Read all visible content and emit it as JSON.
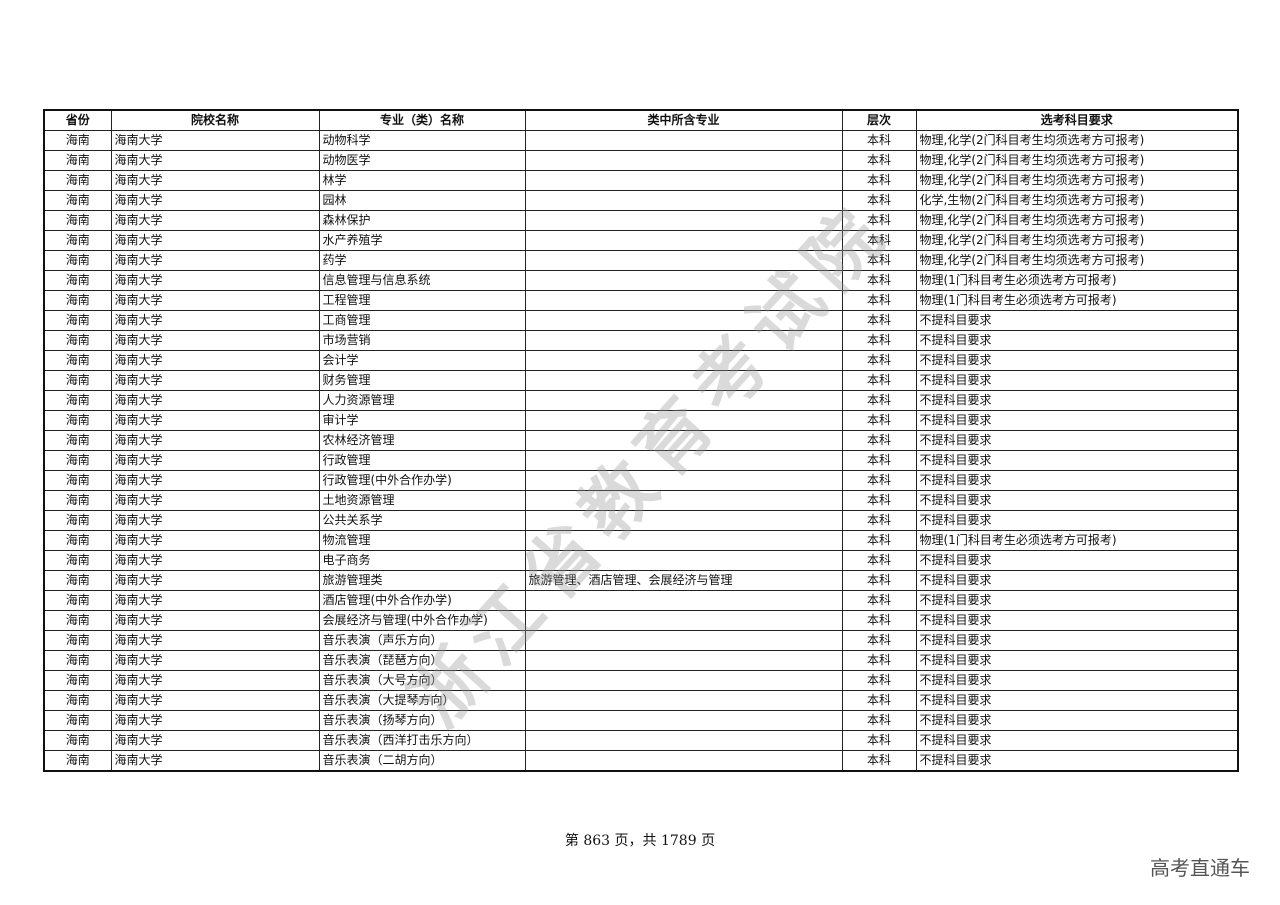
{
  "headers": [
    "省份",
    "院校名称",
    "专业（类）名称",
    "类中所含专业",
    "层次",
    "选考科目要求"
  ],
  "rows": [
    [
      "海南",
      "海南大学",
      "动物科学",
      "",
      "本科",
      "物理,化学(2门科目考生均须选考方可报考)"
    ],
    [
      "海南",
      "海南大学",
      "动物医学",
      "",
      "本科",
      "物理,化学(2门科目考生均须选考方可报考)"
    ],
    [
      "海南",
      "海南大学",
      "林学",
      "",
      "本科",
      "物理,化学(2门科目考生均须选考方可报考)"
    ],
    [
      "海南",
      "海南大学",
      "园林",
      "",
      "本科",
      "化学,生物(2门科目考生均须选考方可报考)"
    ],
    [
      "海南",
      "海南大学",
      "森林保护",
      "",
      "本科",
      "物理,化学(2门科目考生均须选考方可报考)"
    ],
    [
      "海南",
      "海南大学",
      "水产养殖学",
      "",
      "本科",
      "物理,化学(2门科目考生均须选考方可报考)"
    ],
    [
      "海南",
      "海南大学",
      "药学",
      "",
      "本科",
      "物理,化学(2门科目考生均须选考方可报考)"
    ],
    [
      "海南",
      "海南大学",
      "信息管理与信息系统",
      "",
      "本科",
      "物理(1门科目考生必须选考方可报考)"
    ],
    [
      "海南",
      "海南大学",
      "工程管理",
      "",
      "本科",
      "物理(1门科目考生必须选考方可报考)"
    ],
    [
      "海南",
      "海南大学",
      "工商管理",
      "",
      "本科",
      "不提科目要求"
    ],
    [
      "海南",
      "海南大学",
      "市场营销",
      "",
      "本科",
      "不提科目要求"
    ],
    [
      "海南",
      "海南大学",
      "会计学",
      "",
      "本科",
      "不提科目要求"
    ],
    [
      "海南",
      "海南大学",
      "财务管理",
      "",
      "本科",
      "不提科目要求"
    ],
    [
      "海南",
      "海南大学",
      "人力资源管理",
      "",
      "本科",
      "不提科目要求"
    ],
    [
      "海南",
      "海南大学",
      "审计学",
      "",
      "本科",
      "不提科目要求"
    ],
    [
      "海南",
      "海南大学",
      "农林经济管理",
      "",
      "本科",
      "不提科目要求"
    ],
    [
      "海南",
      "海南大学",
      "行政管理",
      "",
      "本科",
      "不提科目要求"
    ],
    [
      "海南",
      "海南大学",
      "行政管理(中外合作办学)",
      "",
      "本科",
      "不提科目要求"
    ],
    [
      "海南",
      "海南大学",
      "土地资源管理",
      "",
      "本科",
      "不提科目要求"
    ],
    [
      "海南",
      "海南大学",
      "公共关系学",
      "",
      "本科",
      "不提科目要求"
    ],
    [
      "海南",
      "海南大学",
      "物流管理",
      "",
      "本科",
      "物理(1门科目考生必须选考方可报考)"
    ],
    [
      "海南",
      "海南大学",
      "电子商务",
      "",
      "本科",
      "不提科目要求"
    ],
    [
      "海南",
      "海南大学",
      "旅游管理类",
      "旅游管理、酒店管理、会展经济与管理",
      "本科",
      "不提科目要求"
    ],
    [
      "海南",
      "海南大学",
      "酒店管理(中外合作办学)",
      "",
      "本科",
      "不提科目要求"
    ],
    [
      "海南",
      "海南大学",
      "会展经济与管理(中外合作办学)",
      "",
      "本科",
      "不提科目要求"
    ],
    [
      "海南",
      "海南大学",
      "音乐表演（声乐方向）",
      "",
      "本科",
      "不提科目要求"
    ],
    [
      "海南",
      "海南大学",
      "音乐表演（琵琶方向）",
      "",
      "本科",
      "不提科目要求"
    ],
    [
      "海南",
      "海南大学",
      "音乐表演（大号方向）",
      "",
      "本科",
      "不提科目要求"
    ],
    [
      "海南",
      "海南大学",
      "音乐表演（大提琴方向）",
      "",
      "本科",
      "不提科目要求"
    ],
    [
      "海南",
      "海南大学",
      "音乐表演（扬琴方向）",
      "",
      "本科",
      "不提科目要求"
    ],
    [
      "海南",
      "海南大学",
      "音乐表演（西洋打击乐方向）",
      "",
      "本科",
      "不提科目要求"
    ],
    [
      "海南",
      "海南大学",
      "音乐表演（二胡方向）",
      "",
      "本科",
      "不提科目要求"
    ]
  ],
  "watermark": "浙江省教育考试院",
  "footer": "第 863 页，共 1789 页",
  "brand": "高考直通车"
}
